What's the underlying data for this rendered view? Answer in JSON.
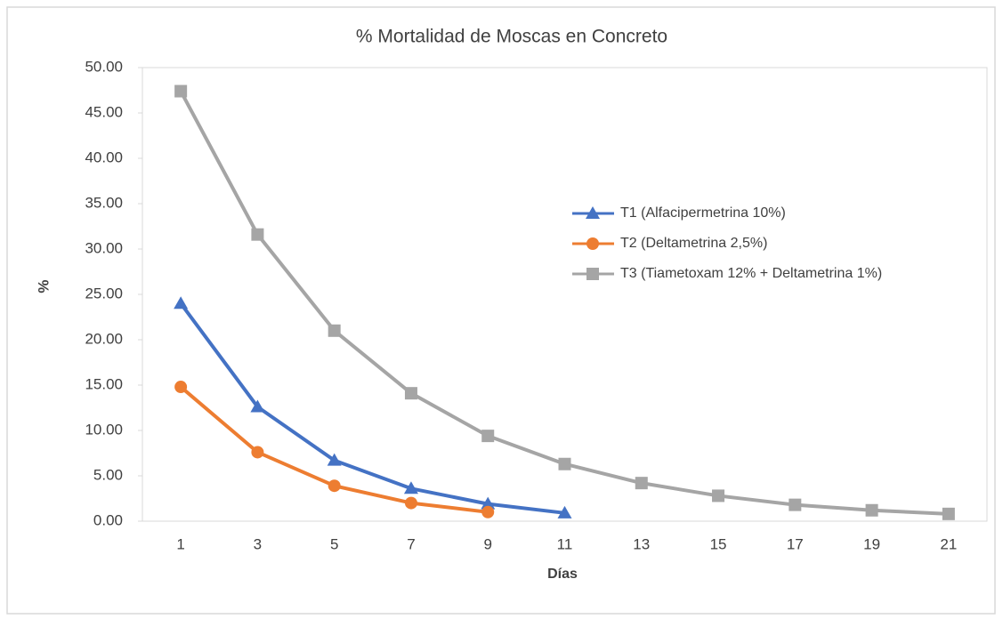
{
  "chart_data": {
    "type": "line",
    "title": "% Mortalidad de Moscas en Concreto",
    "x_label": "Días",
    "y_label": "%",
    "categories": [
      "1",
      "3",
      "5",
      "7",
      "9",
      "11",
      "13",
      "15",
      "17",
      "19",
      "21"
    ],
    "series": [
      {
        "name": "T1 (Alfacipermetrina 10%)",
        "color": "#4472c4",
        "marker": "triangle",
        "values": [
          24.0,
          12.6,
          6.7,
          3.6,
          1.9,
          0.9,
          null,
          null,
          null,
          null,
          null
        ]
      },
      {
        "name": "T2 (Deltametrina 2,5%)",
        "color": "#ed7d31",
        "marker": "circle",
        "values": [
          14.8,
          7.6,
          3.9,
          2.0,
          1.0,
          null,
          null,
          null,
          null,
          null,
          null
        ]
      },
      {
        "name": "T3 (Tiametoxam 12% + Deltametrina 1%)",
        "color": "#a5a5a5",
        "marker": "square",
        "values": [
          47.4,
          31.6,
          21.0,
          14.1,
          9.4,
          6.3,
          4.2,
          2.8,
          1.8,
          1.2,
          0.8
        ]
      }
    ],
    "ylim": [
      0,
      50
    ],
    "yticks": [
      {
        "value": 0,
        "label": "0.00"
      },
      {
        "value": 5,
        "label": "5.00"
      },
      {
        "value": 10,
        "label": "10.00"
      },
      {
        "value": 15,
        "label": "15.00"
      },
      {
        "value": 20,
        "label": "20.00"
      },
      {
        "value": 25,
        "label": "25.00"
      },
      {
        "value": 30,
        "label": "30.00"
      },
      {
        "value": 35,
        "label": "35.00"
      },
      {
        "value": 40,
        "label": "40.00"
      },
      {
        "value": 45,
        "label": "45.00"
      },
      {
        "value": 50,
        "label": "50.00"
      }
    ],
    "grid": false,
    "legend": "right"
  }
}
